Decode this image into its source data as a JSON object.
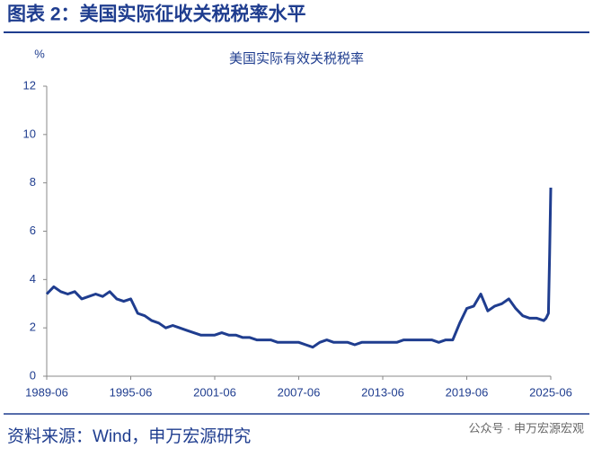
{
  "header": {
    "title": "图表 2：美国实际征收关税税率水平"
  },
  "chart_data": {
    "type": "line",
    "title": "美国实际有效关税税率",
    "y_label": "%",
    "x": [
      "1989-06",
      "1989-12",
      "1990-06",
      "1990-12",
      "1991-06",
      "1991-12",
      "1992-06",
      "1992-12",
      "1993-06",
      "1993-12",
      "1994-06",
      "1994-12",
      "1995-06",
      "1995-12",
      "1996-06",
      "1996-12",
      "1997-06",
      "1997-12",
      "1998-06",
      "1998-12",
      "1999-06",
      "1999-12",
      "2000-06",
      "2000-12",
      "2001-06",
      "2001-12",
      "2002-06",
      "2002-12",
      "2003-06",
      "2003-12",
      "2004-06",
      "2004-12",
      "2005-06",
      "2005-12",
      "2006-06",
      "2006-12",
      "2007-06",
      "2007-12",
      "2008-06",
      "2008-12",
      "2009-06",
      "2009-12",
      "2010-06",
      "2010-12",
      "2011-06",
      "2011-12",
      "2012-06",
      "2012-12",
      "2013-06",
      "2013-12",
      "2014-06",
      "2014-12",
      "2015-06",
      "2015-12",
      "2016-06",
      "2016-12",
      "2017-06",
      "2017-12",
      "2018-06",
      "2018-12",
      "2019-06",
      "2019-12",
      "2020-06",
      "2020-12",
      "2021-06",
      "2021-12",
      "2022-06",
      "2022-12",
      "2023-06",
      "2023-12",
      "2024-06",
      "2024-12",
      "2025-02",
      "2025-03",
      "2025-04",
      "2025-05",
      "2025-06"
    ],
    "series": [
      {
        "name": "美国实际有效关税税率",
        "color": "#1f3d8f",
        "values": [
          3.4,
          3.7,
          3.5,
          3.4,
          3.5,
          3.2,
          3.3,
          3.4,
          3.3,
          3.5,
          3.2,
          3.1,
          3.2,
          2.6,
          2.5,
          2.3,
          2.2,
          2.0,
          2.1,
          2.0,
          1.9,
          1.8,
          1.7,
          1.7,
          1.7,
          1.8,
          1.7,
          1.7,
          1.6,
          1.6,
          1.5,
          1.5,
          1.5,
          1.4,
          1.4,
          1.4,
          1.4,
          1.3,
          1.2,
          1.4,
          1.5,
          1.4,
          1.4,
          1.4,
          1.3,
          1.4,
          1.4,
          1.4,
          1.4,
          1.4,
          1.4,
          1.5,
          1.5,
          1.5,
          1.5,
          1.5,
          1.4,
          1.5,
          1.5,
          2.2,
          2.8,
          2.9,
          3.4,
          2.7,
          2.9,
          3.0,
          3.2,
          2.8,
          2.5,
          2.4,
          2.4,
          2.3,
          2.4,
          2.5,
          2.6,
          5.0,
          7.8
        ]
      }
    ],
    "xlim": [
      "1989-06",
      "2025-06"
    ],
    "xticks": [
      "1989-06",
      "1995-06",
      "2001-06",
      "2007-06",
      "2013-06",
      "2019-06",
      "2025-06"
    ],
    "ylim": [
      0,
      12
    ],
    "yticks": [
      0,
      2,
      4,
      6,
      8,
      10,
      12
    ]
  },
  "footer": {
    "source": "资料来源：Wind，申万宏源研究",
    "watermark": "公众号 · 申万宏源宏观"
  }
}
